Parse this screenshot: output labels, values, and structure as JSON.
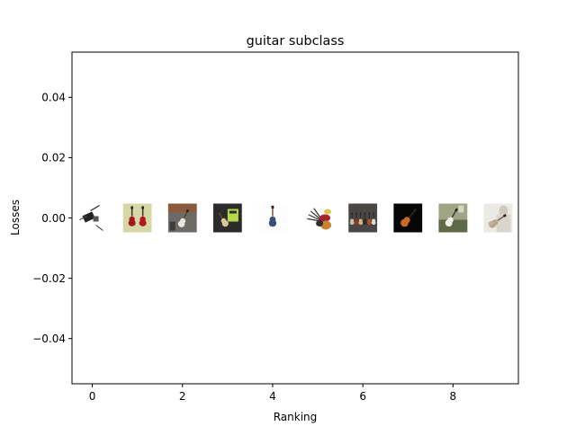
{
  "chart_data": {
    "type": "scatter",
    "title": "guitar subclass",
    "xlabel": "Ranking",
    "ylabel": "Losses",
    "xlim": [
      -0.45,
      9.45
    ],
    "ylim": [
      -0.055,
      0.055
    ],
    "xticks": [
      0,
      2,
      4,
      6,
      8
    ],
    "xtick_labels": [
      "0",
      "2",
      "4",
      "6",
      "8"
    ],
    "yticks": [
      -0.04,
      -0.02,
      0.0,
      0.02,
      0.04
    ],
    "ytick_labels": [
      "−0.04",
      "−0.02",
      "0.00",
      "0.02",
      "0.04"
    ],
    "grid": false,
    "points": [
      {
        "x": 0,
        "y": 0.0,
        "thumb": "guitar-parts-black-white"
      },
      {
        "x": 1,
        "y": 0.0,
        "thumb": "two-red-guitars"
      },
      {
        "x": 2,
        "y": 0.0,
        "thumb": "guitar-on-wall"
      },
      {
        "x": 3,
        "y": 0.0,
        "thumb": "guitar-poster"
      },
      {
        "x": 4,
        "y": 0.0,
        "thumb": "single-blue-guitar"
      },
      {
        "x": 5,
        "y": 0.0,
        "thumb": "guitar-collection-fan"
      },
      {
        "x": 6,
        "y": 0.0,
        "thumb": "guitar-shop-rack"
      },
      {
        "x": 7,
        "y": 0.0,
        "thumb": "orange-guitar-dark"
      },
      {
        "x": 8,
        "y": 0.0,
        "thumb": "green-guitar-photo"
      },
      {
        "x": 9,
        "y": 0.0,
        "thumb": "person-playing-guitar"
      }
    ]
  }
}
